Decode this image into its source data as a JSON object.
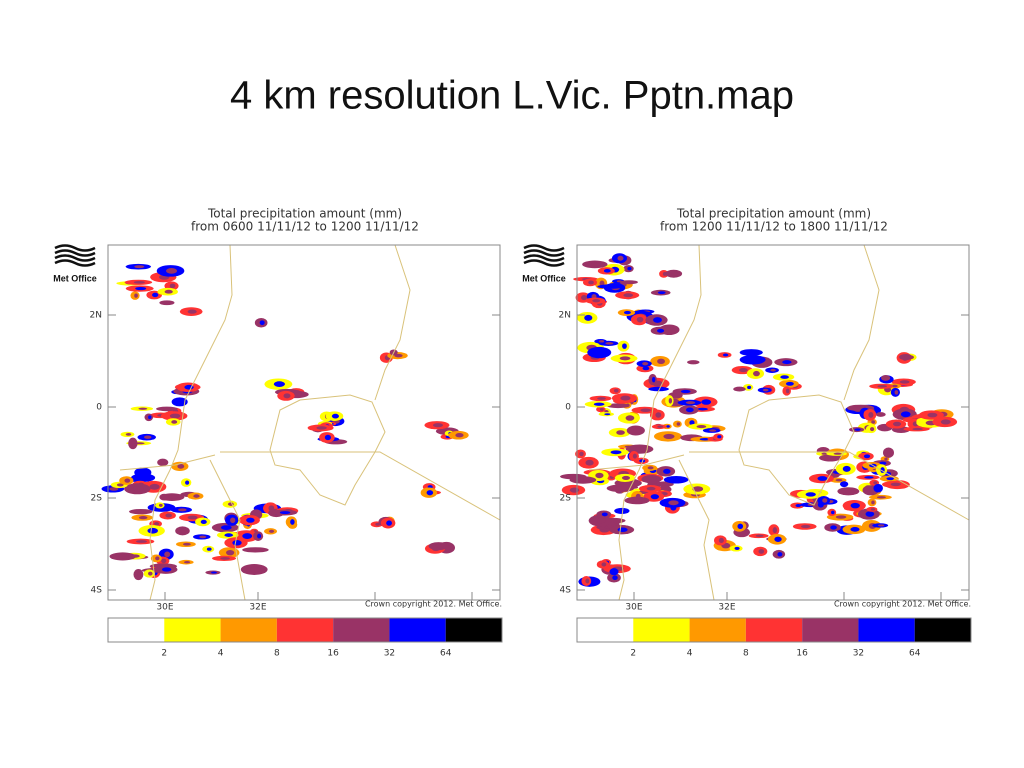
{
  "title": "4 km resolution L.Vic. Pptn.map",
  "maps": [
    {
      "title": "Total precipitation amount (mm)",
      "subtitle": "from 0600 11/11/12 to 1200 11/11/12",
      "logo": "Met Office",
      "lat_labels": [
        "2N",
        "0",
        "2S",
        "4S"
      ],
      "lon_labels": [
        "30E",
        "32E"
      ],
      "copyright": "Crown copyright 2012. Met Office.",
      "legend": {
        "colors": [
          "#ffffff",
          "#ffff00",
          "#ff9900",
          "#ff3333",
          "#993366",
          "#0000ff",
          "#000000"
        ],
        "labels": [
          2,
          4,
          8,
          16,
          32,
          64
        ]
      }
    },
    {
      "title": "Total precipitation amount (mm)",
      "subtitle": "from 1200 11/11/12 to 1800 11/11/12",
      "logo": "Met Office",
      "lat_labels": [
        "2N",
        "0",
        "2S",
        "4S"
      ],
      "lon_labels": [
        "30E",
        "32E"
      ],
      "copyright": "Crown copyright 2012. Met Office.",
      "legend": {
        "colors": [
          "#ffffff",
          "#ffff00",
          "#ff9900",
          "#ff3333",
          "#993366",
          "#0000ff",
          "#000000"
        ],
        "labels": [
          2,
          4,
          8,
          16,
          32,
          64
        ]
      }
    }
  ]
}
